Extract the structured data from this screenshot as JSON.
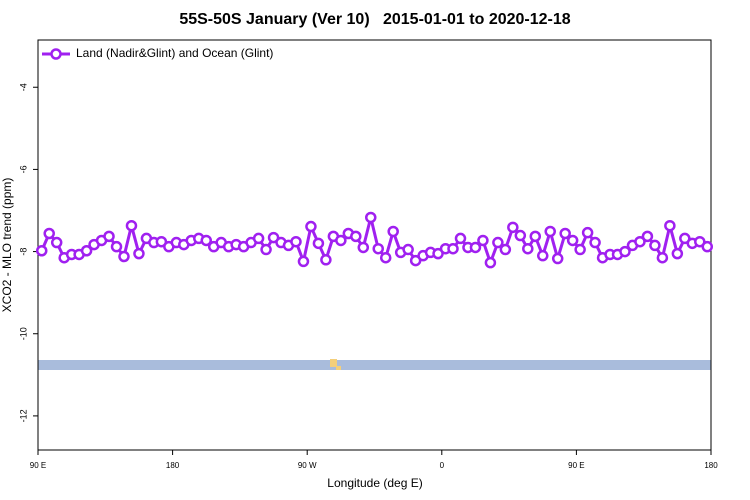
{
  "chart_data": {
    "type": "line",
    "title": "55S-50S January (Ver 10)   2015-01-01 to 2020-12-18",
    "xlabel": "Longitude (deg E)",
    "ylabel": "XCO2 - MLO trend (ppm)",
    "xlim": [
      90,
      540
    ],
    "ylim": [
      -12.83,
      -2.85
    ],
    "xticks": [
      {
        "value": 90,
        "label": "90 E"
      },
      180,
      {
        "value": 270,
        "label": "90 W"
      },
      {
        "value": 360,
        "label": "0"
      },
      {
        "value": 450,
        "label": "90 E"
      },
      {
        "value": 540,
        "label": "180"
      }
    ],
    "yticks": [
      -4,
      -6,
      -8,
      -10,
      -12
    ],
    "legend": "upper left",
    "x": [
      92.5,
      97.5,
      102.5,
      107.5,
      112.5,
      117.5,
      122.5,
      127.5,
      132.5,
      137.5,
      142.5,
      147.5,
      152.5,
      157.5,
      162.5,
      167.5,
      172.5,
      177.5,
      182.5,
      187.5,
      192.5,
      197.5,
      202.5,
      207.5,
      212.5,
      217.5,
      222.5,
      227.5,
      232.5,
      237.5,
      242.5,
      247.5,
      252.5,
      257.5,
      262.5,
      267.5,
      272.5,
      277.5,
      282.5,
      287.5,
      292.5,
      297.5,
      302.5,
      307.5,
      312.5,
      317.5,
      322.5,
      327.5,
      332.5,
      337.5,
      342.5,
      347.5,
      352.5,
      357.5,
      362.5,
      367.5,
      372.5,
      377.5,
      382.5,
      387.5,
      392.5,
      397.5,
      402.5,
      407.5,
      412.5,
      417.5,
      422.5,
      427.5,
      432.5,
      437.5,
      442.5,
      447.5,
      452.5,
      457.5,
      462.5,
      467.5,
      472.5,
      477.5,
      482.5,
      487.5,
      492.5,
      497.5,
      502.5,
      507.5,
      512.5,
      517.5,
      522.5,
      527.5,
      532.5,
      537.5
    ],
    "series": [
      {
        "name": "Land (Nadir&Glint) and Ocean (Glint)",
        "color": "#a020f0",
        "values": [
          -7.98,
          -7.56,
          -7.78,
          -8.15,
          -8.07,
          -8.07,
          -7.98,
          -7.83,
          -7.73,
          -7.63,
          -7.88,
          -8.12,
          -7.37,
          -8.05,
          -7.68,
          -7.78,
          -7.76,
          -7.88,
          -7.78,
          -7.83,
          -7.73,
          -7.68,
          -7.73,
          -7.88,
          -7.78,
          -7.88,
          -7.83,
          -7.88,
          -7.78,
          -7.68,
          -7.95,
          -7.66,
          -7.78,
          -7.85,
          -7.76,
          -8.24,
          -7.39,
          -7.8,
          -8.2,
          -7.63,
          -7.73,
          -7.56,
          -7.63,
          -7.9,
          -7.17,
          -7.93,
          -8.15,
          -7.51,
          -8.02,
          -7.95,
          -8.22,
          -8.1,
          -8.02,
          -8.05,
          -7.93,
          -7.93,
          -7.68,
          -7.9,
          -7.9,
          -7.73,
          -8.27,
          -7.78,
          -7.95,
          -7.41,
          -7.61,
          -7.93,
          -7.63,
          -8.1,
          -7.51,
          -8.17,
          -7.56,
          -7.73,
          -7.95,
          -7.54,
          -7.78,
          -8.15,
          -8.07,
          -8.07,
          -8.0,
          -7.85,
          -7.76,
          -7.63,
          -7.85,
          -8.15,
          -7.37,
          -8.05,
          -7.68,
          -7.8,
          -7.76,
          -7.88
        ]
      }
    ]
  }
}
